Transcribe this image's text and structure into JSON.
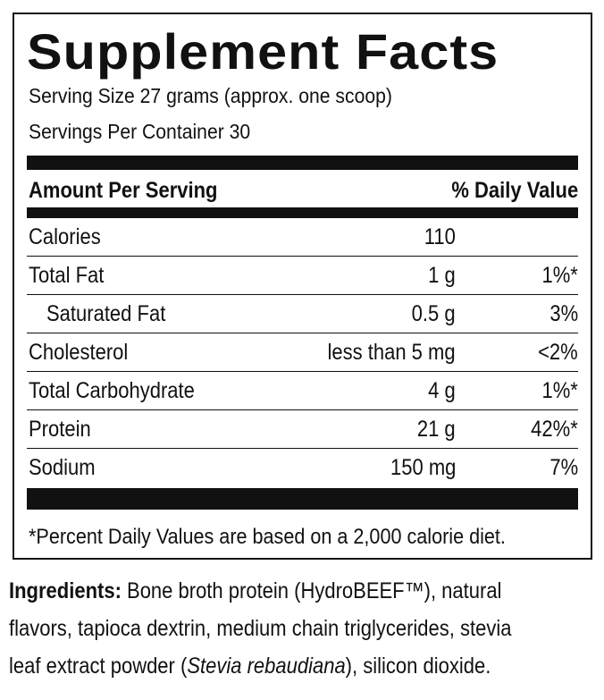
{
  "title": "Supplement Facts",
  "serving_size": "Serving Size 27 grams (approx. one scoop)",
  "servings_per_container": "Servings Per Container 30",
  "header": {
    "amount_per_serving": "Amount Per Serving",
    "daily_value": "% Daily Value"
  },
  "nutrients": [
    {
      "name": "Calories",
      "amount": "110",
      "dv": ""
    },
    {
      "name": "Total Fat",
      "amount": "1 g",
      "dv": "1%*"
    },
    {
      "name": "Saturated Fat",
      "amount": "0.5 g",
      "dv": "3%"
    },
    {
      "name": "Cholesterol",
      "amount": "less than 5 mg",
      "dv": "<2%"
    },
    {
      "name": "Total Carbohydrate",
      "amount": "4 g",
      "dv": "1%*"
    },
    {
      "name": "Protein",
      "amount": "21 g",
      "dv": "42%*"
    },
    {
      "name": "Sodium",
      "amount": "150 mg",
      "dv": "7%"
    }
  ],
  "footnote": "*Percent Daily Values are based on a 2,000 calorie diet.",
  "ingredients": {
    "label": "Ingredients:",
    "line1": " Bone broth protein (HydroBEEF™), natural",
    "line2": "flavors, tapioca dextrin, medium chain triglycerides, stevia",
    "line3_start": "leaf extract powder (",
    "line3_italic": "Stevia rebaudiana",
    "line3_end": "), silicon dioxide."
  }
}
